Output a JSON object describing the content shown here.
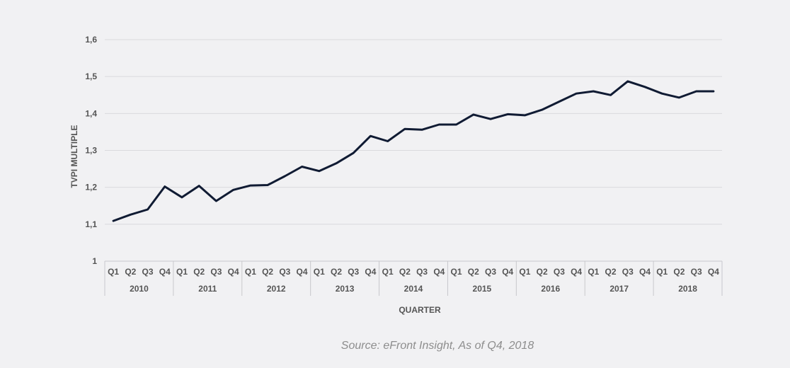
{
  "chart_data": {
    "type": "line",
    "ylabel": "TVPI MULTIPLE",
    "xlabel": "QUARTER",
    "ylim": [
      1,
      1.6
    ],
    "y_ticks": [
      "1",
      "1,1",
      "1,2",
      "1,3",
      "1,4",
      "1,5",
      "1,6"
    ],
    "grid": true,
    "quarters": [
      "Q1",
      "Q2",
      "Q3",
      "Q4"
    ],
    "years": [
      "2010",
      "2011",
      "2012",
      "2013",
      "2014",
      "2015",
      "2016",
      "2017",
      "2018"
    ],
    "series": [
      {
        "color": "#101b33",
        "values": [
          1.109,
          1.126,
          1.14,
          1.202,
          1.173,
          1.204,
          1.163,
          1.193,
          1.205,
          1.206,
          1.23,
          1.256,
          1.244,
          1.265,
          1.293,
          1.339,
          1.325,
          1.358,
          1.356,
          1.37,
          1.37,
          1.397,
          1.385,
          1.398,
          1.395,
          1.41,
          1.432,
          1.454,
          1.46,
          1.45,
          1.487,
          1.472,
          1.454,
          1.443,
          1.46,
          1.46
        ]
      }
    ]
  },
  "source": "Source: eFront Insight, As of Q4, 2018"
}
